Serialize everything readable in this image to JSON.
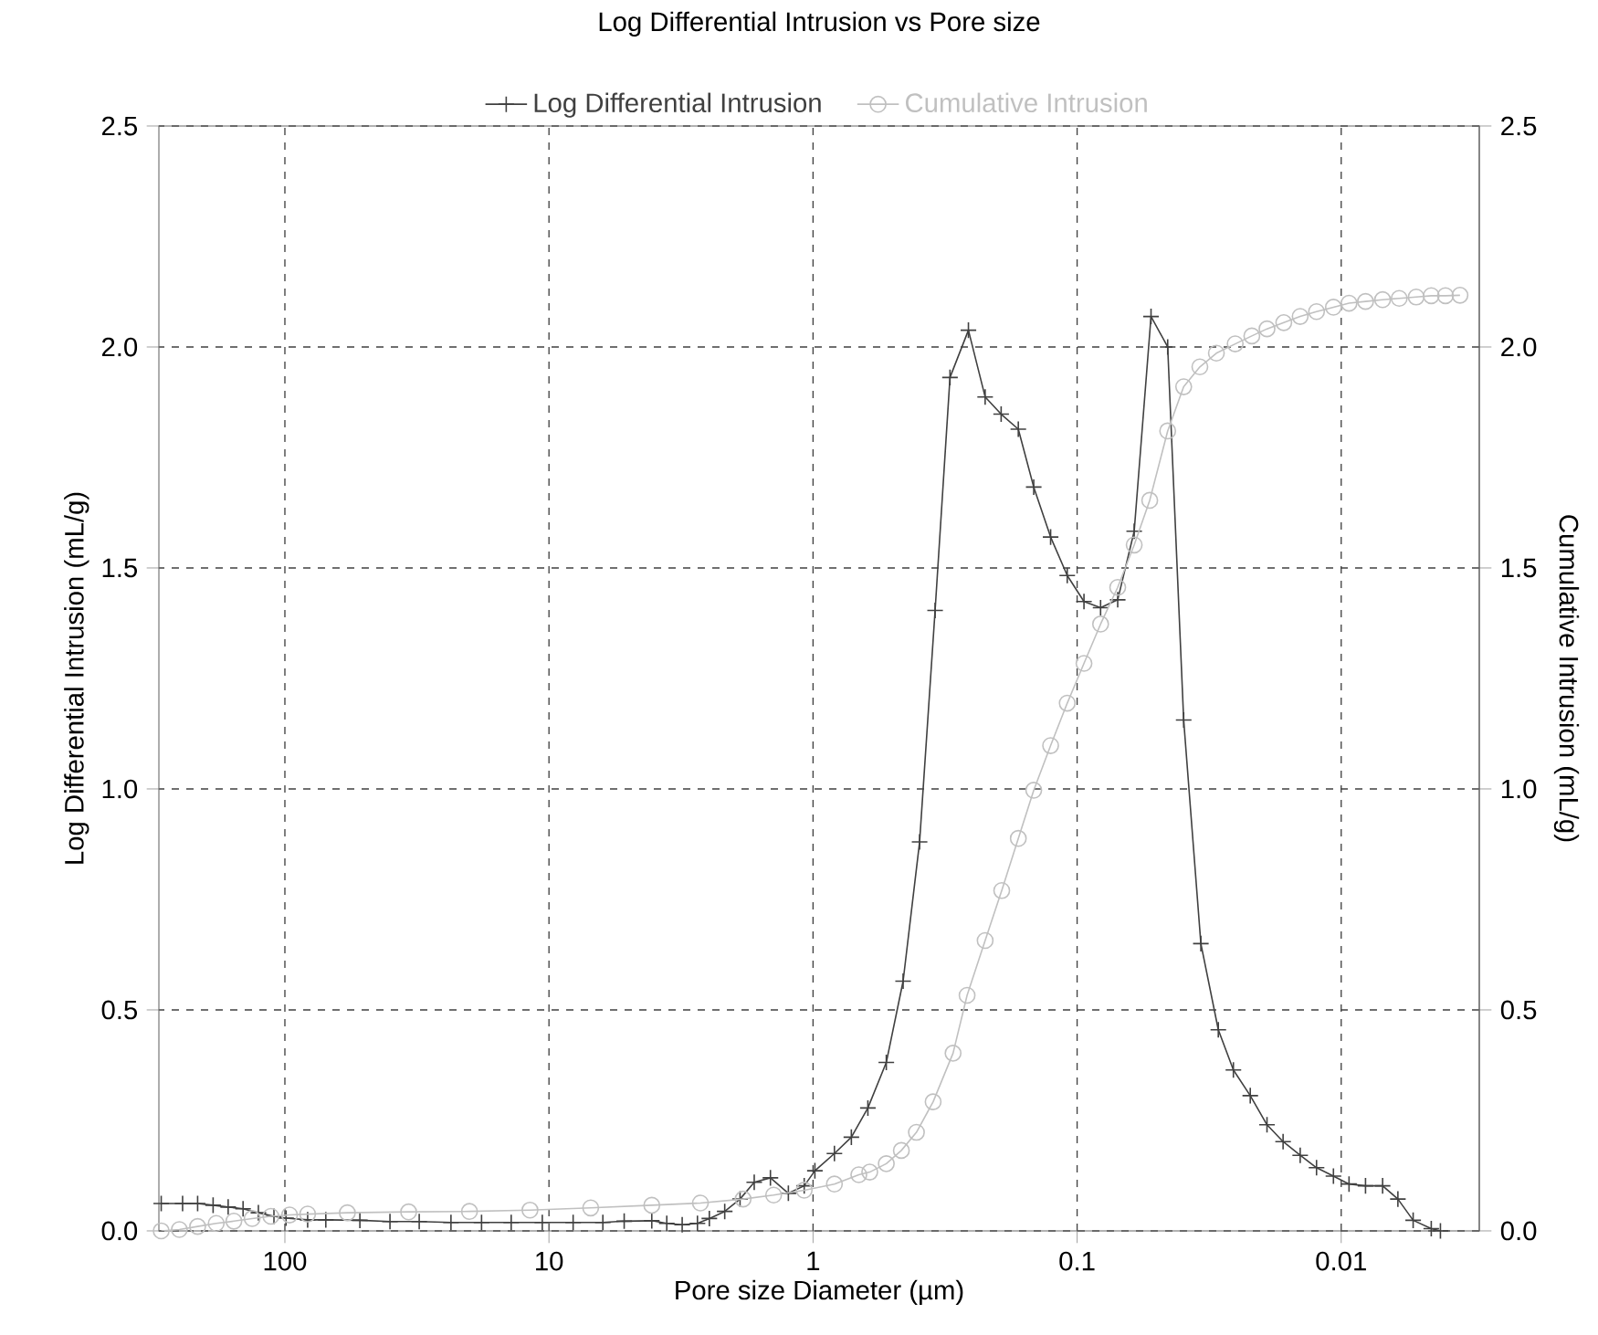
{
  "chart_data": {
    "type": "line",
    "title": "Log Differential Intrusion vs Pore size",
    "xlabel": "Pore size Diameter (µm)",
    "ylabel": "Log Differential Intrusion (mL/g)",
    "y2label": "Cumulative Intrusion (mL/g)",
    "log": "x",
    "xlim": [
      300,
      0.003
    ],
    "xticks": [
      100,
      10,
      1,
      0.1,
      0.01
    ],
    "ylim": [
      0,
      2.5
    ],
    "yticks": [
      {
        "value": 0,
        "label": "0.0"
      },
      {
        "value": 0.5,
        "label": "0.5"
      },
      {
        "value": 1,
        "label": "1.0"
      },
      {
        "value": 1.5,
        "label": "1.5"
      },
      {
        "value": 2,
        "label": "2.0"
      },
      {
        "value": 2.5,
        "label": "2.5"
      }
    ],
    "y2lim": [
      0,
      2.5
    ],
    "y2ticks": [
      {
        "value": 0,
        "label": "0.0"
      },
      {
        "value": 0.5,
        "label": "0.5"
      },
      {
        "value": 1,
        "label": "1.0"
      },
      {
        "value": 1.5,
        "label": "1.5"
      },
      {
        "value": 2,
        "label": "2.0"
      },
      {
        "value": 2.5,
        "label": "2.5"
      }
    ],
    "grid": true,
    "legend": "top",
    "line_style": "solid",
    "series": [
      {
        "name": "Log Differential Intrusion",
        "color": "#404040",
        "marker": "cross",
        "x": [
          294,
          244,
          214,
          187,
          164,
          144,
          126,
          110,
          99,
          82,
          70,
          52,
          40,
          31,
          23.5,
          18,
          13.9,
          10.6,
          8.1,
          6.25,
          5.19,
          4.08,
          3.58,
          3.13,
          2.74,
          2.47,
          2.16,
          1.89,
          1.67,
          1.45,
          1.24,
          1.08,
          0.984,
          0.83,
          0.716,
          0.62,
          0.528,
          0.456,
          0.395,
          0.345,
          0.303,
          0.258,
          0.223,
          0.194,
          0.167,
          0.146,
          0.126,
          0.109,
          0.0942,
          0.0815,
          0.0702,
          0.0608,
          0.0525,
          0.0454,
          0.0395,
          0.034,
          0.0292,
          0.0256,
          0.0221,
          0.0191,
          0.0166,
          0.0143,
          0.0124,
          0.0107,
          0.00934,
          0.00809,
          0.00697,
          0.0061,
          0.00534,
          0.00456,
          0.00421
        ],
        "values": [
          0.062,
          0.062,
          0.062,
          0.058,
          0.054,
          0.05,
          0.041,
          0.033,
          0.029,
          0.025,
          0.025,
          0.024,
          0.021,
          0.021,
          0.019,
          0.019,
          0.019,
          0.019,
          0.019,
          0.019,
          0.022,
          0.023,
          0.017,
          0.014,
          0.017,
          0.028,
          0.044,
          0.072,
          0.11,
          0.12,
          0.085,
          0.102,
          0.136,
          0.175,
          0.212,
          0.278,
          0.381,
          0.565,
          0.88,
          1.404,
          1.931,
          2.038,
          1.887,
          1.848,
          1.814,
          1.683,
          1.57,
          1.483,
          1.424,
          1.41,
          1.428,
          1.583,
          2.069,
          2.0,
          1.156,
          0.65,
          0.455,
          0.364,
          0.306,
          0.24,
          0.202,
          0.171,
          0.143,
          0.124,
          0.106,
          0.102,
          0.102,
          0.072,
          0.024,
          0.005,
          0.0
        ]
      },
      {
        "name": "Cumulative Intrusion",
        "color": "#c0c0c0",
        "marker": "circle",
        "axis": "y2",
        "x": [
          294,
          251,
          214,
          182,
          156,
          133,
          113,
          96,
          82,
          58,
          34,
          20,
          11.8,
          6.95,
          4.08,
          2.67,
          1.84,
          1.41,
          1.08,
          0.83,
          0.671,
          0.61,
          0.528,
          0.463,
          0.406,
          0.351,
          0.295,
          0.261,
          0.223,
          0.193,
          0.167,
          0.146,
          0.126,
          0.109,
          0.0942,
          0.0815,
          0.0702,
          0.0608,
          0.0531,
          0.0454,
          0.0395,
          0.0343,
          0.0297,
          0.0252,
          0.0218,
          0.0191,
          0.0165,
          0.0143,
          0.0124,
          0.0107,
          0.00934,
          0.00809,
          0.00697,
          0.00603,
          0.0052,
          0.00456,
          0.00403,
          0.00355
        ],
        "values": [
          0.0,
          0.003,
          0.01,
          0.017,
          0.022,
          0.028,
          0.033,
          0.036,
          0.038,
          0.041,
          0.043,
          0.044,
          0.047,
          0.052,
          0.058,
          0.063,
          0.072,
          0.081,
          0.092,
          0.106,
          0.127,
          0.133,
          0.152,
          0.182,
          0.223,
          0.292,
          0.402,
          0.533,
          0.657,
          0.77,
          0.888,
          0.997,
          1.098,
          1.194,
          1.284,
          1.373,
          1.456,
          1.552,
          1.653,
          1.81,
          1.91,
          1.955,
          1.986,
          2.007,
          2.025,
          2.041,
          2.055,
          2.069,
          2.08,
          2.09,
          2.099,
          2.103,
          2.107,
          2.11,
          2.113,
          2.116,
          2.116,
          2.117
        ]
      }
    ]
  }
}
